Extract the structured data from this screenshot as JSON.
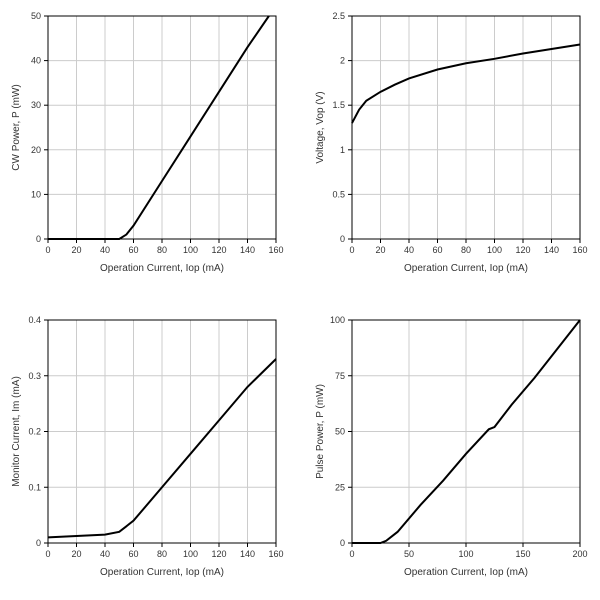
{
  "background_color": "#ffffff",
  "grid_color": "#cccccc",
  "axis_color": "#000000",
  "line_color": "#000000",
  "line_width": 2,
  "tick_fontsize": 9,
  "label_fontsize": 10,
  "charts": [
    {
      "id": "cw-power",
      "type": "line",
      "xlabel": "Operation Current, Iop (mA)",
      "ylabel": "CW Power, P (mW)",
      "xlim": [
        0,
        160
      ],
      "ylim": [
        0,
        50
      ],
      "xticks": [
        0,
        20,
        40,
        60,
        80,
        100,
        120,
        140,
        160
      ],
      "yticks": [
        0,
        10,
        20,
        30,
        40,
        50
      ],
      "data": [
        [
          0,
          0
        ],
        [
          50,
          0
        ],
        [
          55,
          1
        ],
        [
          60,
          3
        ],
        [
          80,
          13
        ],
        [
          100,
          23
        ],
        [
          120,
          33
        ],
        [
          140,
          43
        ],
        [
          155,
          50
        ]
      ]
    },
    {
      "id": "voltage",
      "type": "line",
      "xlabel": "Operation Current, Iop (mA)",
      "ylabel": "Voltage, Vop (V)",
      "xlim": [
        0,
        160
      ],
      "ylim": [
        0,
        2.5
      ],
      "xticks": [
        0,
        20,
        40,
        60,
        80,
        100,
        120,
        140,
        160
      ],
      "yticks": [
        0.0,
        0.5,
        1.0,
        1.5,
        2.0,
        2.5
      ],
      "data": [
        [
          0,
          1.3
        ],
        [
          5,
          1.45
        ],
        [
          10,
          1.55
        ],
        [
          20,
          1.65
        ],
        [
          30,
          1.73
        ],
        [
          40,
          1.8
        ],
        [
          60,
          1.9
        ],
        [
          80,
          1.97
        ],
        [
          100,
          2.02
        ],
        [
          120,
          2.08
        ],
        [
          140,
          2.13
        ],
        [
          160,
          2.18
        ]
      ]
    },
    {
      "id": "monitor-current",
      "type": "line",
      "xlabel": "Operation Current, Iop (mA)",
      "ylabel": "Monitor Current, Im (mA)",
      "xlim": [
        0,
        160
      ],
      "ylim": [
        0,
        0.4
      ],
      "xticks": [
        0,
        20,
        40,
        60,
        80,
        100,
        120,
        140,
        160
      ],
      "yticks": [
        0,
        0.1,
        0.2,
        0.3,
        0.4
      ],
      "data": [
        [
          0,
          0.01
        ],
        [
          40,
          0.015
        ],
        [
          50,
          0.02
        ],
        [
          55,
          0.03
        ],
        [
          60,
          0.04
        ],
        [
          80,
          0.1
        ],
        [
          100,
          0.16
        ],
        [
          120,
          0.22
        ],
        [
          140,
          0.28
        ],
        [
          160,
          0.33
        ]
      ]
    },
    {
      "id": "pulse-power",
      "type": "line",
      "xlabel": "Operation Current, Iop (mA)",
      "ylabel": "Pulse Power, P (mW)",
      "xlim": [
        0,
        200
      ],
      "ylim": [
        0,
        100
      ],
      "xticks": [
        0,
        50,
        100,
        150,
        200
      ],
      "yticks": [
        0,
        25,
        50,
        75,
        100
      ],
      "data": [
        [
          0,
          0
        ],
        [
          25,
          0
        ],
        [
          30,
          1
        ],
        [
          40,
          5
        ],
        [
          60,
          17
        ],
        [
          80,
          28
        ],
        [
          100,
          40
        ],
        [
          120,
          51
        ],
        [
          125,
          52
        ],
        [
          140,
          62
        ],
        [
          160,
          74
        ],
        [
          180,
          87
        ],
        [
          200,
          100
        ]
      ]
    }
  ]
}
